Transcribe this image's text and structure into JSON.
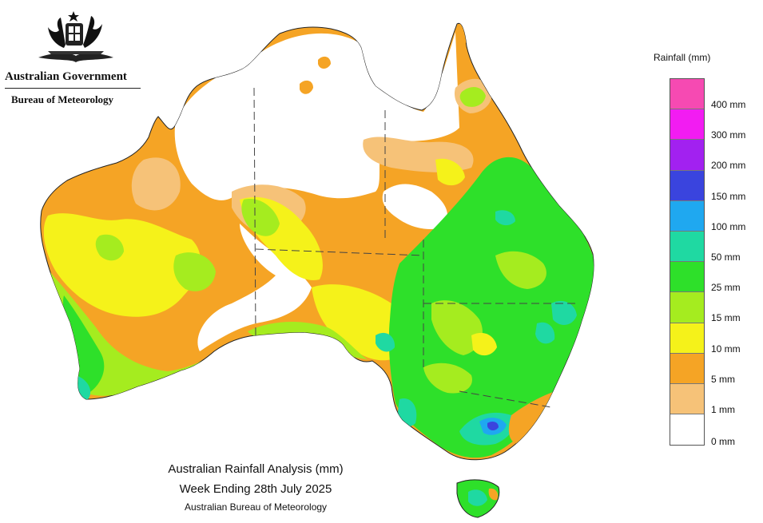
{
  "header": {
    "government": "Australian Government",
    "bureau": "Bureau of Meteorology"
  },
  "legend": {
    "title": "Rainfall (mm)",
    "items": [
      {
        "label": "400 mm",
        "color": "#f64ab2"
      },
      {
        "label": "300 mm",
        "color": "#f21cf2"
      },
      {
        "label": "200 mm",
        "color": "#a221f0"
      },
      {
        "label": "150 mm",
        "color": "#3a44de"
      },
      {
        "label": "100 mm",
        "color": "#1fa8f0"
      },
      {
        "label": "50 mm",
        "color": "#1fd9a2"
      },
      {
        "label": "25 mm",
        "color": "#2ee02a"
      },
      {
        "label": "15 mm",
        "color": "#a5ec1f"
      },
      {
        "label": "10 mm",
        "color": "#f5f21a"
      },
      {
        "label": "5 mm",
        "color": "#f5a425"
      },
      {
        "label": "1 mm",
        "color": "#f6c278"
      },
      {
        "label": "0 mm",
        "color": "#ffffff"
      }
    ]
  },
  "caption": {
    "title": "Australian Rainfall Analysis (mm)",
    "week": "Week Ending 28th July 2025",
    "source": "Australian Bureau of Meteorology"
  }
}
